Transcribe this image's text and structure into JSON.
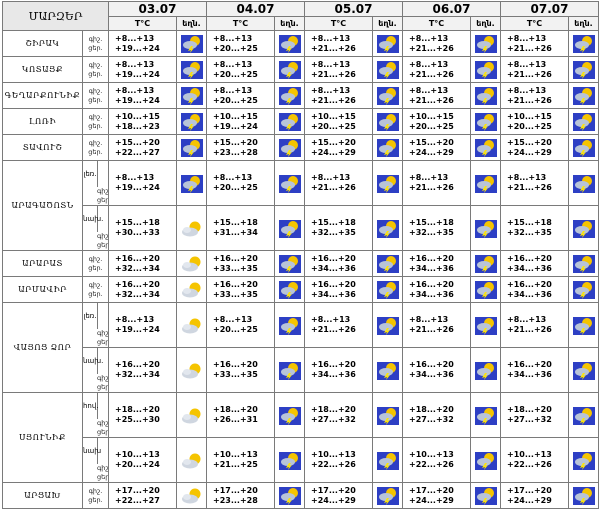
{
  "header": {
    "region_label": "ՄԱՐԶԵՐ",
    "dates": [
      "03.07",
      "04.07",
      "05.07",
      "06.07",
      "07.07"
    ],
    "temp_label": "T°C",
    "weather_label": "եղն."
  },
  "tod": {
    "night": "գիշ.",
    "day": "ցեր."
  },
  "rows": [
    {
      "region": "ՇԻՐԱԿ",
      "sub": "",
      "temps": [
        [
          "+8...+13",
          "+19...+24"
        ],
        [
          "+8...+13",
          "+20...+25"
        ],
        [
          "+8...+13",
          "+21...+26"
        ],
        [
          "+8...+13",
          "+21...+26"
        ],
        [
          "+8...+13",
          "+21...+26"
        ]
      ],
      "icons": [
        "storm-icon",
        "storm-icon",
        "storm-icon",
        "storm-icon",
        "storm-icon"
      ]
    },
    {
      "region": "ԿՈՏԱՅՔ",
      "sub": "",
      "temps": [
        [
          "+8...+13",
          "+19...+24"
        ],
        [
          "+8...+13",
          "+20...+25"
        ],
        [
          "+8...+13",
          "+21...+26"
        ],
        [
          "+8...+13",
          "+21...+26"
        ],
        [
          "+8...+13",
          "+21...+26"
        ]
      ],
      "icons": [
        "storm-icon",
        "storm-icon",
        "storm-icon",
        "storm-icon",
        "storm-icon"
      ]
    },
    {
      "region": "ԳԵՂԱՐՔՈՒՆԻՔ",
      "sub": "",
      "temps": [
        [
          "+8...+13",
          "+19...+24"
        ],
        [
          "+8...+13",
          "+20...+25"
        ],
        [
          "+8...+13",
          "+21...+26"
        ],
        [
          "+8...+13",
          "+21...+26"
        ],
        [
          "+8...+13",
          "+21...+26"
        ]
      ],
      "icons": [
        "storm-icon",
        "storm-icon",
        "storm-icon",
        "storm-icon",
        "storm-icon"
      ]
    },
    {
      "region": "ԼՈՌԻ",
      "sub": "",
      "temps": [
        [
          "+10...+15",
          "+18...+23"
        ],
        [
          "+10...+15",
          "+19...+24"
        ],
        [
          "+10...+15",
          "+20...+25"
        ],
        [
          "+10...+15",
          "+20...+25"
        ],
        [
          "+10...+15",
          "+20...+25"
        ]
      ],
      "icons": [
        "storm-icon",
        "storm-icon",
        "storm-icon",
        "storm-icon",
        "storm-icon"
      ]
    },
    {
      "region": "ՏԱՎՈՒՇ",
      "sub": "",
      "temps": [
        [
          "+15...+20",
          "+22...+27"
        ],
        [
          "+15...+20",
          "+23...+28"
        ],
        [
          "+15...+20",
          "+24...+29"
        ],
        [
          "+15...+20",
          "+24...+29"
        ],
        [
          "+15...+20",
          "+24...+29"
        ]
      ],
      "icons": [
        "storm-icon",
        "storm-icon",
        "storm-icon",
        "storm-icon",
        "storm-icon"
      ]
    },
    {
      "region": "ԱՐԱԳԱԾՈՏՆ",
      "sub": "լեռ.",
      "temps": [
        [
          "+8...+13",
          "+19...+24"
        ],
        [
          "+8...+13",
          "+20...+25"
        ],
        [
          "+8...+13",
          "+21...+26"
        ],
        [
          "+8...+13",
          "+21...+26"
        ],
        [
          "+8...+13",
          "+21...+26"
        ]
      ],
      "icons": [
        "storm-icon",
        "storm-icon",
        "storm-icon",
        "storm-icon",
        "storm-icon"
      ]
    },
    {
      "region": "",
      "sub": "նախ.",
      "temps": [
        [
          "+15...+18",
          "+30...+33"
        ],
        [
          "+15...+18",
          "+31...+34"
        ],
        [
          "+15...+18",
          "+32...+35"
        ],
        [
          "+15...+18",
          "+32...+35"
        ],
        [
          "+15...+18",
          "+32...+35"
        ]
      ],
      "icons": [
        "partly-cloudy-icon",
        "storm-icon",
        "storm-icon",
        "storm-icon",
        "storm-icon"
      ]
    },
    {
      "region": "ԱՐԱՐԱՏ",
      "sub": "",
      "temps": [
        [
          "+16...+20",
          "+32...+34"
        ],
        [
          "+16...+20",
          "+33...+35"
        ],
        [
          "+16...+20",
          "+34...+36"
        ],
        [
          "+16...+20",
          "+34...+36"
        ],
        [
          "+16...+20",
          "+34...+36"
        ]
      ],
      "icons": [
        "partly-cloudy-icon",
        "storm-icon",
        "storm-icon",
        "storm-icon",
        "storm-icon"
      ]
    },
    {
      "region": "ԱՐՄԱՎԻՐ",
      "sub": "",
      "temps": [
        [
          "+16...+20",
          "+32...+34"
        ],
        [
          "+16...+20",
          "+33...+35"
        ],
        [
          "+16...+20",
          "+34...+36"
        ],
        [
          "+16...+20",
          "+34...+36"
        ],
        [
          "+16...+20",
          "+34...+36"
        ]
      ],
      "icons": [
        "partly-cloudy-icon",
        "storm-icon",
        "storm-icon",
        "storm-icon",
        "storm-icon"
      ]
    },
    {
      "region": "ՎԱՅՈՑ ՁՈՐ",
      "sub": "լեռ.",
      "temps": [
        [
          "+8...+13",
          "+19...+24"
        ],
        [
          "+8...+13",
          "+20...+25"
        ],
        [
          "+8...+13",
          "+21...+26"
        ],
        [
          "+8...+13",
          "+21...+26"
        ],
        [
          "+8...+13",
          "+21...+26"
        ]
      ],
      "icons": [
        "partly-cloudy-icon",
        "storm-icon",
        "storm-icon",
        "storm-icon",
        "storm-icon"
      ]
    },
    {
      "region": "",
      "sub": "նախ.",
      "temps": [
        [
          "+16...+20",
          "+32...+34"
        ],
        [
          "+16...+20",
          "+33...+35"
        ],
        [
          "+16...+20",
          "+34...+36"
        ],
        [
          "+16...+20",
          "+34...+36"
        ],
        [
          "+16...+20",
          "+34...+36"
        ]
      ],
      "icons": [
        "partly-cloudy-icon",
        "storm-icon",
        "storm-icon",
        "storm-icon",
        "storm-icon"
      ]
    },
    {
      "region": "ՍՅՈՒՆԻՔ",
      "sub": "հով.",
      "temps": [
        [
          "+18...+20",
          "+25...+30"
        ],
        [
          "+18...+20",
          "+26...+31"
        ],
        [
          "+18...+20",
          "+27...+32"
        ],
        [
          "+18...+20",
          "+27...+32"
        ],
        [
          "+18...+20",
          "+27...+32"
        ]
      ],
      "icons": [
        "partly-cloudy-icon",
        "storm-icon",
        "storm-icon",
        "storm-icon",
        "storm-icon"
      ]
    },
    {
      "region": "",
      "sub": "նախ",
      "temps": [
        [
          "+10...+13",
          "+20...+24"
        ],
        [
          "+10...+13",
          "+21...+25"
        ],
        [
          "+10...+13",
          "+22...+26"
        ],
        [
          "+10...+13",
          "+22...+26"
        ],
        [
          "+10...+13",
          "+22...+26"
        ]
      ],
      "icons": [
        "partly-cloudy-icon",
        "storm-icon",
        "storm-icon",
        "storm-icon",
        "storm-icon"
      ]
    },
    {
      "region": "ԱՐՑԱԽ",
      "sub": "",
      "temps": [
        [
          "+17...+20",
          "+22...+27"
        ],
        [
          "+17...+20",
          "+23...+28"
        ],
        [
          "+17...+20",
          "+24...+29"
        ],
        [
          "+17...+20",
          "+24...+29"
        ],
        [
          "+17...+20",
          "+24...+29"
        ]
      ],
      "icons": [
        "partly-cloudy-icon",
        "storm-icon",
        "storm-icon",
        "storm-icon",
        "storm-icon"
      ]
    }
  ],
  "colors": {
    "grid": "#7a7a7a",
    "header_bg": "#f2f2f2",
    "storm_bg": "#2d3fc4",
    "sun": "#f5c400",
    "cloud": "#b8c4d8"
  }
}
